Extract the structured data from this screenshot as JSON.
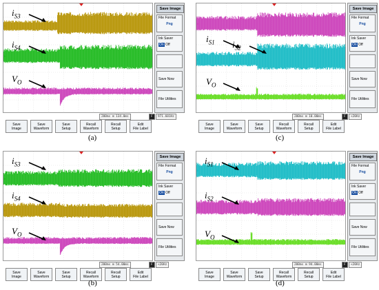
{
  "menu": {
    "title": "Save Image",
    "file_format_label": "File Format",
    "file_format_value": "Png",
    "ink_saver_label": "Ink Saver",
    "ink_on": "On",
    "ink_off": "Off",
    "save_now": "Save Now",
    "file_utilities": "File Utilities"
  },
  "buttons": [
    {
      "l1": "Save",
      "l2": "Image"
    },
    {
      "l1": "Save",
      "l2": "Waveform"
    },
    {
      "l1": "Save",
      "l2": "Setup"
    },
    {
      "l1": "Recall",
      "l2": "Waveform"
    },
    {
      "l1": "Recall",
      "l2": "Setup"
    },
    {
      "l1": "Edit",
      "l2": "File Label"
    }
  ],
  "colors": {
    "ch_yellow": "#b8960a",
    "ch_green": "#22bb22",
    "ch_pink": "#cc44bb",
    "ch_cyan": "#1cbcc6",
    "ch_lime": "#66dd22"
  },
  "panels": [
    {
      "tag": "(a)",
      "timebase": "200ms",
      "delay": "134.0ms",
      "freq": "971.601Hz",
      "labels": [
        {
          "main": "i",
          "sub": "S3"
        },
        {
          "main": "i",
          "sub": "S4"
        },
        {
          "main": "V",
          "sub": "O"
        }
      ]
    },
    {
      "tag": "(c)",
      "timebase": "200ms",
      "delay": "10.00ms",
      "freq": "<20Hz",
      "labels": [
        {
          "main": "i",
          "sub": "S1"
        },
        {
          "main": "i",
          "sub": "S2"
        },
        {
          "main": "V",
          "sub": "O"
        }
      ]
    },
    {
      "tag": "(b)",
      "timebase": "200ms",
      "delay": "54.00ms",
      "freq": "<20Hz",
      "labels": [
        {
          "main": "i",
          "sub": "S3"
        },
        {
          "main": "i",
          "sub": "S4"
        },
        {
          "main": "V",
          "sub": "O"
        }
      ]
    },
    {
      "tag": "(d)",
      "timebase": "200ms",
      "delay": "94.00ms",
      "freq": "<20Hz",
      "labels": [
        {
          "main": "i",
          "sub": "S1"
        },
        {
          "main": "i",
          "sub": "S2"
        },
        {
          "main": "V",
          "sub": "O"
        }
      ]
    }
  ]
}
